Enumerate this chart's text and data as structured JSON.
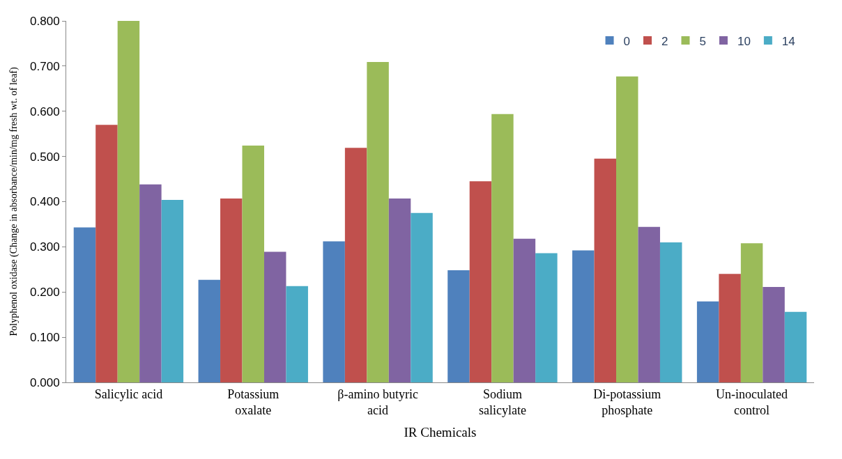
{
  "chart_data": {
    "type": "bar",
    "xlabel": "IR Chemicals",
    "ylabel": "Polyphenol oxidase (Change in absorbance/min/mg fresh wt. of leaf)",
    "categories": [
      "Salicylic acid",
      "Potassium\noxalate",
      "β-amino butyric\nacid",
      "Sodium\nsalicylate",
      "Di-potassium\nphosphate",
      "Un-inoculated\ncontrol"
    ],
    "series": [
      {
        "name": "0",
        "color": "#4f81bd",
        "values": [
          0.343,
          0.227,
          0.312,
          0.248,
          0.292,
          0.179
        ]
      },
      {
        "name": "2",
        "color": "#c0504d",
        "values": [
          0.57,
          0.407,
          0.519,
          0.445,
          0.495,
          0.24
        ]
      },
      {
        "name": "5",
        "color": "#9bbb59",
        "values": [
          0.8,
          0.524,
          0.709,
          0.594,
          0.677,
          0.308
        ]
      },
      {
        "name": "10",
        "color": "#8064a2",
        "values": [
          0.438,
          0.289,
          0.407,
          0.318,
          0.344,
          0.211
        ]
      },
      {
        "name": "14",
        "color": "#4bacc6",
        "values": [
          0.404,
          0.213,
          0.375,
          0.286,
          0.31,
          0.156
        ]
      }
    ],
    "ylim": [
      0,
      0.8
    ],
    "yticks": [
      {
        "value": 0,
        "label": "0.000"
      },
      {
        "value": 0.1,
        "label": "0.100"
      },
      {
        "value": 0.2,
        "label": "0.200"
      },
      {
        "value": 0.3,
        "label": "0.300"
      },
      {
        "value": 0.4,
        "label": "0.400"
      },
      {
        "value": 0.5,
        "label": "0.500"
      },
      {
        "value": 0.6,
        "label": "0.600"
      },
      {
        "value": 0.7,
        "label": "0.700"
      },
      {
        "value": 0.8,
        "label": "0.800"
      }
    ],
    "legend": "top right"
  }
}
